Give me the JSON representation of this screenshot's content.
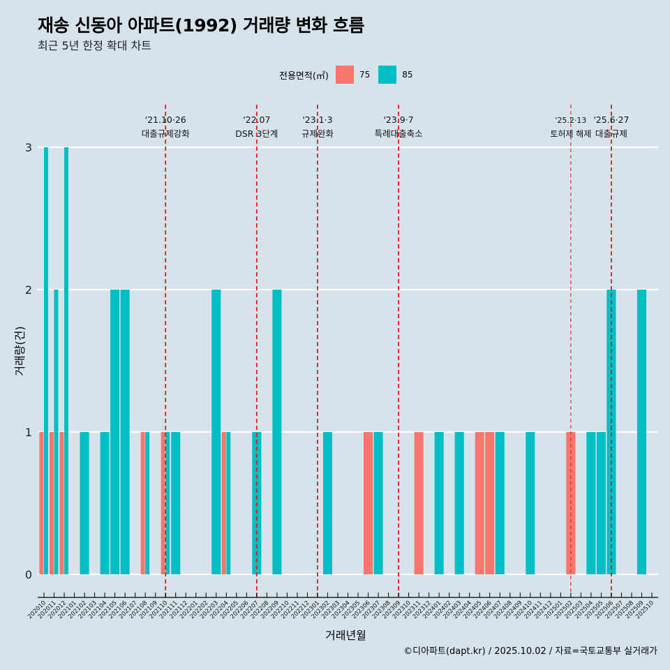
{
  "title": "재송 신동아 아파트(1992) 거래량 변화 흐름",
  "subtitle": "최근 5년 한정 확대 차트",
  "legend": {
    "title": "전용면적(㎡)",
    "items": [
      {
        "label": "75",
        "color": "#F8766D"
      },
      {
        "label": "85",
        "color": "#00BFC4"
      }
    ]
  },
  "footer": "©디아파트(dapt.kr) / 2025.10.02 / 자료=국토교통부 실거래가",
  "chart_data": {
    "type": "bar",
    "title": "재송 신동아 아파트(1992) 거래량 변화 흐름",
    "subtitle": "최근 5년 한정 확대 차트",
    "xlabel": "거래년월",
    "ylabel": "거래량(건)",
    "ylim": [
      0,
      3
    ],
    "yticks": [
      0,
      1,
      2,
      3
    ],
    "grid": "horizontal",
    "legend_position": "top",
    "categories": [
      "202010",
      "202011",
      "202012",
      "202101",
      "202102",
      "202103",
      "202104",
      "202105",
      "202106",
      "202107",
      "202108",
      "202109",
      "202110",
      "202111",
      "202112",
      "202201",
      "202202",
      "202203",
      "202204",
      "202205",
      "202206",
      "202207",
      "202208",
      "202209",
      "202210",
      "202211",
      "202212",
      "202301",
      "202302",
      "202303",
      "202304",
      "202305",
      "202306",
      "202307",
      "202308",
      "202309",
      "202310",
      "202311",
      "202312",
      "202401",
      "202402",
      "202403",
      "202404",
      "202405",
      "202406",
      "202407",
      "202408",
      "202409",
      "202410",
      "202411",
      "202412",
      "202501",
      "202502",
      "202503",
      "202504",
      "202505",
      "202506",
      "202507",
      "202508",
      "202509",
      "202510"
    ],
    "series": [
      {
        "name": "75",
        "color": "#F8766D",
        "points": [
          {
            "x": "202010",
            "y": 1
          },
          {
            "x": "202011",
            "y": 1
          },
          {
            "x": "202012",
            "y": 1
          },
          {
            "x": "202108",
            "y": 1
          },
          {
            "x": "202110",
            "y": 1
          },
          {
            "x": "202204",
            "y": 1
          },
          {
            "x": "202306",
            "y": 1
          },
          {
            "x": "202311",
            "y": 1
          },
          {
            "x": "202405",
            "y": 1
          },
          {
            "x": "202406",
            "y": 1
          },
          {
            "x": "202502",
            "y": 1
          }
        ]
      },
      {
        "name": "85",
        "color": "#00BFC4",
        "points": [
          {
            "x": "202010",
            "y": 3
          },
          {
            "x": "202011",
            "y": 2
          },
          {
            "x": "202012",
            "y": 3
          },
          {
            "x": "202102",
            "y": 1
          },
          {
            "x": "202104",
            "y": 1
          },
          {
            "x": "202105",
            "y": 2
          },
          {
            "x": "202106",
            "y": 2
          },
          {
            "x": "202108",
            "y": 1
          },
          {
            "x": "202110",
            "y": 1
          },
          {
            "x": "202111",
            "y": 1
          },
          {
            "x": "202203",
            "y": 2
          },
          {
            "x": "202204",
            "y": 1
          },
          {
            "x": "202207",
            "y": 1
          },
          {
            "x": "202209",
            "y": 2
          },
          {
            "x": "202302",
            "y": 1
          },
          {
            "x": "202307",
            "y": 1
          },
          {
            "x": "202401",
            "y": 1
          },
          {
            "x": "202403",
            "y": 1
          },
          {
            "x": "202407",
            "y": 1
          },
          {
            "x": "202410",
            "y": 1
          },
          {
            "x": "202504",
            "y": 1
          },
          {
            "x": "202505",
            "y": 1
          },
          {
            "x": "202506",
            "y": 2
          },
          {
            "x": "202509",
            "y": 2
          }
        ]
      }
    ],
    "annotations": [
      {
        "x": "202110",
        "date": "'21.10·26",
        "label": "대출규제강화",
        "style": "thick"
      },
      {
        "x": "202207",
        "date": "'22.07",
        "label": "DSR 3단계",
        "style": "thick"
      },
      {
        "x": "202301",
        "date": "'23.1·3",
        "label": "규제완화",
        "style": "thick"
      },
      {
        "x": "202309",
        "date": "'23.9·7",
        "label": "특례대출축소",
        "style": "thick"
      },
      {
        "x": "202502",
        "date": "'25.2·13",
        "label": "토허제 해제",
        "style": "thin"
      },
      {
        "x": "202506",
        "date": "'25.6·27",
        "label": "대출규제",
        "style": "thick"
      }
    ],
    "annotation_color": "#E41A1C"
  }
}
